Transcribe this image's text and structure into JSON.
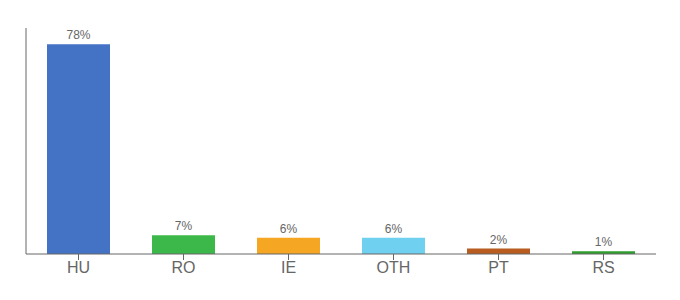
{
  "chart_data": {
    "type": "bar",
    "categories": [
      "HU",
      "RO",
      "IE",
      "OTH",
      "PT",
      "RS"
    ],
    "values": [
      78,
      7,
      6,
      6,
      2,
      1
    ],
    "value_labels": [
      "78%",
      "7%",
      "6%",
      "6%",
      "2%",
      "1%"
    ],
    "colors": [
      "#4472c4",
      "#3cb84a",
      "#f5a623",
      "#70d0f0",
      "#b85c20",
      "#2e9e2e"
    ],
    "ylim": [
      0,
      84
    ],
    "data_labels": true,
    "tick_labels": "x",
    "grid": false
  }
}
